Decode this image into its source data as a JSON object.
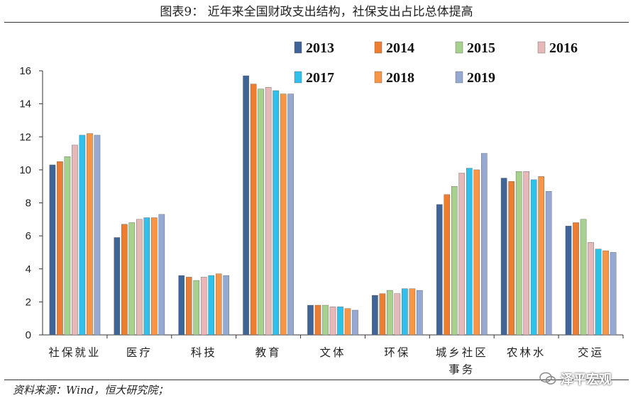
{
  "title": "图表9：   近年来全国财政支出结构，社保支出占比总体提高",
  "source": "资料来源：Wind，恒大研究院；",
  "watermark": "泽平宏观",
  "watermark_icon": "wechat-icon",
  "chart_data": {
    "type": "bar",
    "title": "",
    "xlabel": "",
    "ylabel": "",
    "ylim": [
      0,
      16
    ],
    "yticks": [
      0,
      2,
      4,
      6,
      8,
      10,
      12,
      14,
      16
    ],
    "grid": false,
    "legend_position": "top-right",
    "categories": [
      "社保就业",
      "医疗",
      "科技",
      "教育",
      "文体",
      "环保",
      "城乡社区\n事务",
      "农林水",
      "交运"
    ],
    "series": [
      {
        "name": "2013",
        "color": "#3f6497",
        "values": [
          10.3,
          5.9,
          3.6,
          15.7,
          1.8,
          2.4,
          7.9,
          9.5,
          6.6
        ]
      },
      {
        "name": "2014",
        "color": "#ed7d31",
        "values": [
          10.5,
          6.7,
          3.5,
          15.2,
          1.8,
          2.5,
          8.5,
          9.3,
          6.8
        ]
      },
      {
        "name": "2015",
        "color": "#a9d18e",
        "values": [
          10.8,
          6.8,
          3.3,
          14.9,
          1.8,
          2.7,
          9.0,
          9.9,
          7.0
        ]
      },
      {
        "name": "2016",
        "color": "#e6b8b7",
        "values": [
          11.5,
          7.0,
          3.5,
          15.0,
          1.7,
          2.5,
          9.8,
          9.9,
          5.6
        ]
      },
      {
        "name": "2017",
        "color": "#2fc0ec",
        "values": [
          12.1,
          7.1,
          3.6,
          14.8,
          1.7,
          2.8,
          10.1,
          9.4,
          5.2
        ]
      },
      {
        "name": "2018",
        "color": "#f79646",
        "values": [
          12.2,
          7.1,
          3.7,
          14.6,
          1.6,
          2.8,
          10.0,
          9.6,
          5.1
        ]
      },
      {
        "name": "2019",
        "color": "#95a9d2",
        "values": [
          12.1,
          7.3,
          3.6,
          14.6,
          1.5,
          2.7,
          11.0,
          8.7,
          5.0
        ]
      }
    ]
  }
}
